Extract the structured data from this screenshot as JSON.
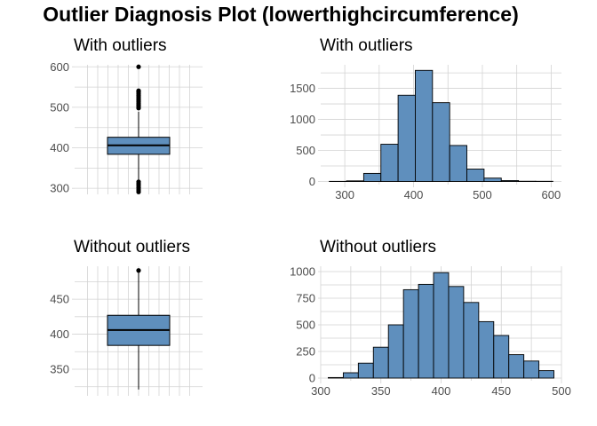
{
  "title": "Outlier Diagnosis Plot (lowerthighcircumference)",
  "fill_color": "#5f8fbd",
  "stroke_color": "#000000",
  "grid_color": "#d3d3d3",
  "chart_data": [
    {
      "type": "box",
      "title": "With outliers",
      "ylim": [
        285,
        605
      ],
      "yticks": [
        300,
        400,
        500,
        600
      ],
      "q1": 384,
      "median": 406,
      "q3": 426,
      "whisker_low": 321,
      "whisker_high": 489,
      "outliers": [
        291,
        296,
        301,
        306,
        311,
        316,
        498,
        502,
        506,
        510,
        514,
        518,
        522,
        526,
        530,
        534,
        538,
        541,
        600
      ]
    },
    {
      "type": "bar",
      "title": "With outliers",
      "xlim": [
        265,
        615
      ],
      "xticks": [
        300,
        400,
        500,
        600
      ],
      "ylim": [
        -50,
        1880
      ],
      "yticks": [
        0,
        500,
        1000,
        1500
      ],
      "bin_width": 25,
      "bin_centers": [
        290,
        315,
        340,
        365,
        390,
        415,
        440,
        465,
        490,
        515,
        540,
        565,
        590
      ],
      "values": [
        2,
        10,
        130,
        600,
        1390,
        1790,
        1270,
        580,
        200,
        55,
        15,
        4,
        3
      ]
    },
    {
      "type": "box",
      "title": "Without outliers",
      "ylim": [
        312,
        497
      ],
      "yticks": [
        350,
        400,
        450
      ],
      "q1": 384,
      "median": 406,
      "q3": 427,
      "whisker_low": 321,
      "whisker_high": 489,
      "outliers": [
        491
      ]
    },
    {
      "type": "bar",
      "title": "Without outliers",
      "xlim": [
        300,
        500
      ],
      "xticks": [
        300,
        350,
        400,
        450,
        500
      ],
      "ylim": [
        -25,
        1050
      ],
      "yticks": [
        0,
        250,
        500,
        750,
        1000
      ],
      "bin_width": 12.5,
      "bin_centers": [
        312.5,
        325,
        337.5,
        350,
        362.5,
        375,
        387.5,
        400,
        412.5,
        425,
        437.5,
        450,
        462.5,
        475,
        487.5
      ],
      "values": [
        5,
        50,
        140,
        290,
        500,
        830,
        880,
        990,
        860,
        710,
        530,
        400,
        220,
        160,
        70
      ]
    }
  ]
}
